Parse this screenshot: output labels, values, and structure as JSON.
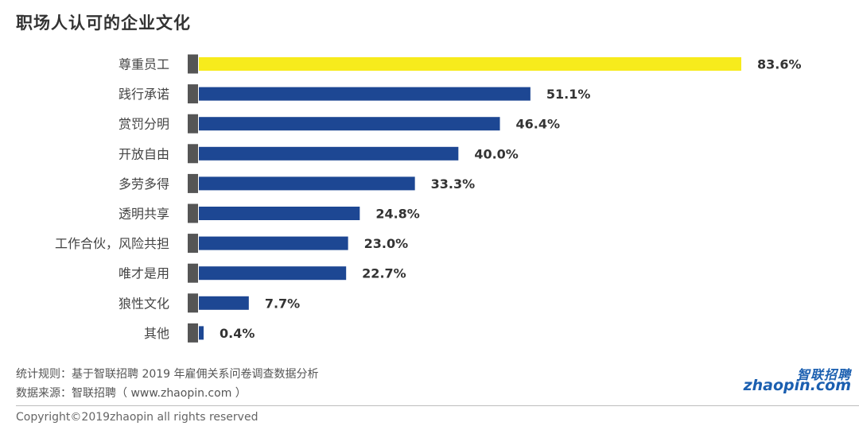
{
  "title": "职场人认可的企业文化",
  "chart_data": {
    "type": "bar",
    "orientation": "horizontal",
    "title": "职场人认可的企业文化",
    "categories": [
      "尊重员工",
      "践行承诺",
      "赏罚分明",
      "开放自由",
      "多劳多得",
      "透明共享",
      "工作合伙，风险共担",
      "唯才是用",
      "狼性文化",
      "其他"
    ],
    "values": [
      83.6,
      51.1,
      46.4,
      40.0,
      33.3,
      24.8,
      23.0,
      22.7,
      7.7,
      0.4
    ],
    "value_labels": [
      "83.6%",
      "51.1%",
      "46.4%",
      "40.0%",
      "33.3%",
      "24.8%",
      "23.0%",
      "22.7%",
      "7.7%",
      "0.4%"
    ],
    "unit": "%",
    "xlim": [
      0,
      100
    ],
    "highlight_color": "#f7eb1c",
    "bar_color": "#1d4793",
    "axis_marker_color": "#555555"
  },
  "footer": {
    "note": "统计规则：基于智联招聘 2019 年雇佣关系问卷调查数据分析",
    "source": "数据来源：智联招聘（ www.zhaopin.com ）",
    "copyright": "Copyright©2019zhaopin all rights reserved"
  },
  "logo": {
    "cn": "智联招聘",
    "en": "zhaopin.com",
    "dot_color": "#f5a500"
  }
}
